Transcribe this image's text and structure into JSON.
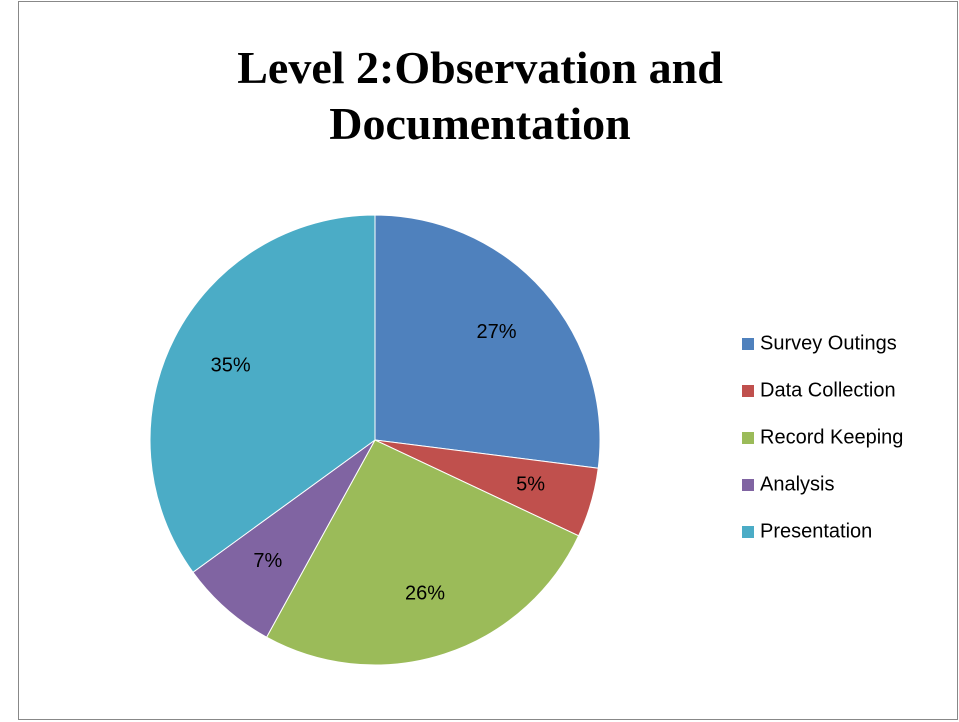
{
  "chart_data": {
    "type": "pie",
    "title": "Level 2:Observation and Documentation",
    "categories": [
      "Survey Outings",
      "Data Collection",
      "Record Keeping",
      "Analysis",
      "Presentation"
    ],
    "values": [
      27,
      5,
      26,
      7,
      35
    ],
    "value_labels": [
      "27%",
      "5%",
      "26%",
      "7%",
      "35%"
    ],
    "colors": [
      "#4f81bd",
      "#c0504d",
      "#9bbb59",
      "#8064a2",
      "#4bacc6"
    ],
    "legend": "right"
  }
}
